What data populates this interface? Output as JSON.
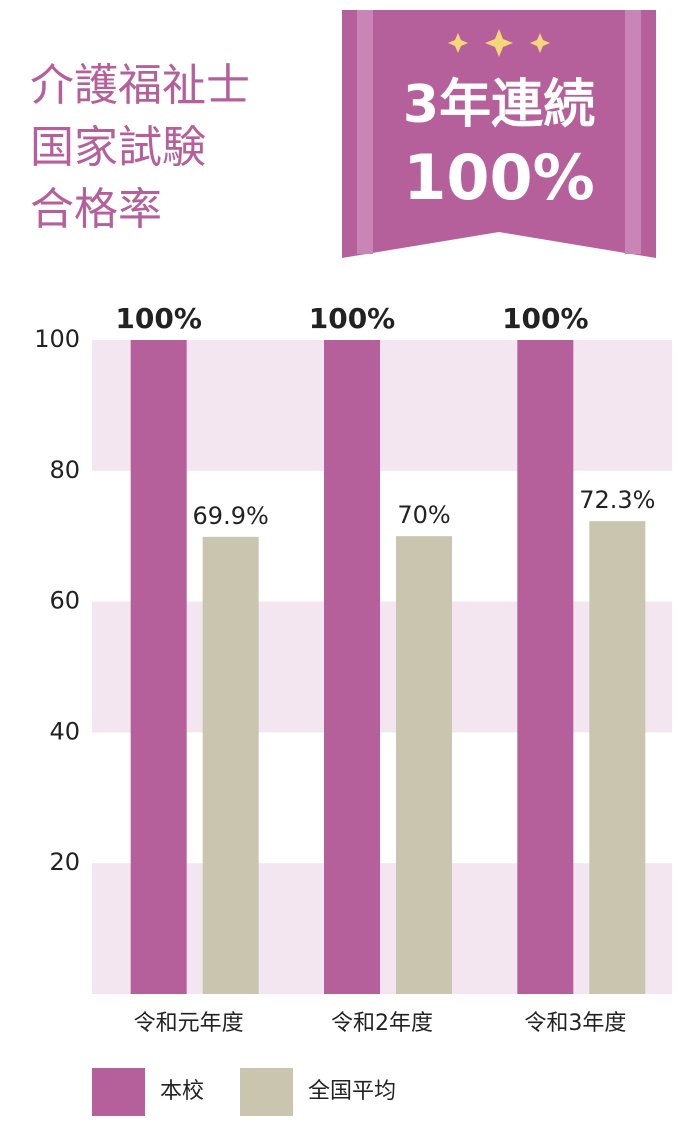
{
  "chart_data": {
    "type": "bar",
    "title": [
      "介護福祉士",
      "国家試験",
      "合格率"
    ],
    "badge": [
      "3年連続",
      "100%"
    ],
    "categories": [
      "令和元年度",
      "令和2年度",
      "令和3年度"
    ],
    "series": [
      {
        "name": "本校",
        "color": "#b5609b",
        "values": [
          100,
          100,
          100
        ],
        "value_labels": [
          "100%",
          "100%",
          "100%"
        ]
      },
      {
        "name": "全国平均",
        "color": "#c9c5ae",
        "values": [
          69.9,
          70,
          72.3
        ],
        "value_labels": [
          "69.9%",
          "70%",
          "72.3%"
        ]
      }
    ],
    "ylim": [
      0,
      100
    ],
    "yticks": [
      20,
      40,
      60,
      80,
      100
    ],
    "grid": "bands",
    "grid_color": "#f3e6f0"
  }
}
